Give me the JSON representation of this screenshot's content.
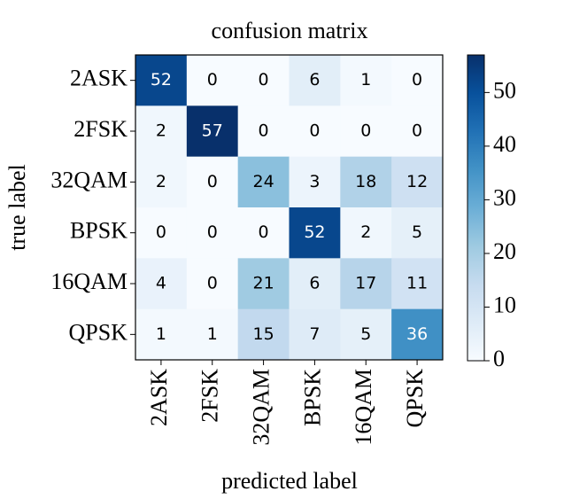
{
  "chart_data": {
    "type": "heatmap",
    "title": "confusion matrix",
    "xlabel": "predicted label",
    "ylabel": "true label",
    "x_categories": [
      "2ASK",
      "2FSK",
      "32QAM",
      "BPSK",
      "16QAM",
      "QPSK"
    ],
    "y_categories": [
      "2ASK",
      "2FSK",
      "32QAM",
      "BPSK",
      "16QAM",
      "QPSK"
    ],
    "values": [
      [
        52,
        0,
        0,
        6,
        1,
        0
      ],
      [
        2,
        57,
        0,
        0,
        0,
        0
      ],
      [
        2,
        0,
        24,
        3,
        18,
        12
      ],
      [
        0,
        0,
        0,
        52,
        2,
        5
      ],
      [
        4,
        0,
        21,
        6,
        17,
        11
      ],
      [
        1,
        1,
        15,
        7,
        5,
        36
      ]
    ],
    "colormap": "Blues",
    "clim": [
      0,
      57
    ],
    "cticks": [
      0,
      10,
      20,
      30,
      40,
      50
    ]
  }
}
